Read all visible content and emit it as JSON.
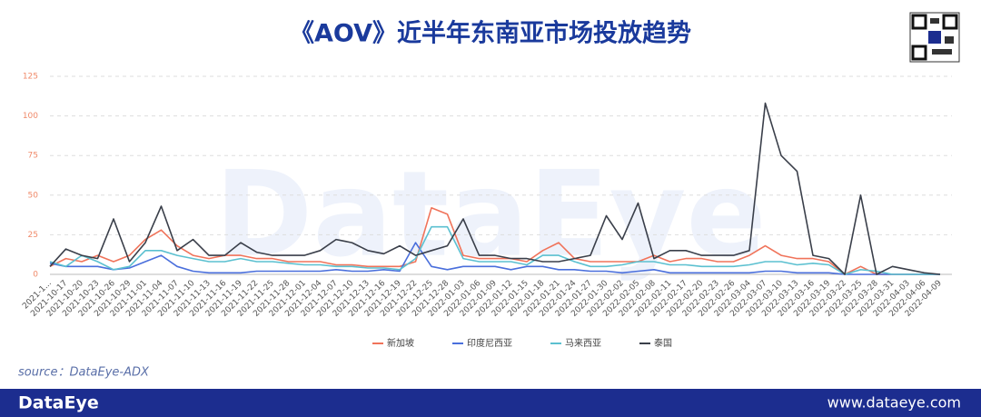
{
  "chart_data": {
    "type": "line",
    "title": "《AOV》近半年东南亚市场投放趋势",
    "watermark": "DataEye",
    "categories": [
      "2021-1...",
      "2021-10-17",
      "2021-10-20",
      "2021-10-23",
      "2021-10-26",
      "2021-10-29",
      "2021-11-01",
      "2021-11-04",
      "2021-11-07",
      "2021-11-10",
      "2021-11-13",
      "2021-11-16",
      "2021-11-19",
      "2021-11-22",
      "2021-11-25",
      "2021-11-28",
      "2021-12-01",
      "2021-12-04",
      "2021-12-07",
      "2021-12-10",
      "2021-12-13",
      "2021-12-16",
      "2021-12-19",
      "2021-12-22",
      "2021-12-25",
      "2021-12-28",
      "2022-01-03",
      "2022-01-06",
      "2022-01-09",
      "2022-01-12",
      "2022-01-15",
      "2022-01-18",
      "2022-01-21",
      "2022-01-24",
      "2022-01-27",
      "2022-01-30",
      "2022-02-02",
      "2022-02-05",
      "2022-02-08",
      "2022-02-11",
      "2022-02-17",
      "2022-02-20",
      "2022-02-23",
      "2022-02-26",
      "2022-03-04",
      "2022-03-07",
      "2022-03-10",
      "2022-03-13",
      "2022-03-16",
      "2022-03-19",
      "2022-03-22",
      "2022-03-25",
      "2022-03-28",
      "2022-03-31",
      "2022-04-03",
      "2022-04-06",
      "2022-04-09"
    ],
    "series": [
      {
        "name": "新加坡",
        "color": "#f0735a",
        "values": [
          5,
          10,
          8,
          12,
          8,
          12,
          22,
          28,
          18,
          12,
          10,
          12,
          12,
          10,
          10,
          8,
          8,
          8,
          6,
          6,
          5,
          5,
          5,
          8,
          42,
          38,
          12,
          10,
          10,
          10,
          8,
          15,
          20,
          10,
          8,
          8,
          8,
          8,
          12,
          8,
          10,
          10,
          8,
          8,
          12,
          18,
          12,
          10,
          10,
          8,
          0,
          5,
          0,
          0,
          0,
          0,
          0
        ]
      },
      {
        "name": "印度尼西亚",
        "color": "#4a6fdc",
        "values": [
          7,
          5,
          5,
          5,
          3,
          4,
          8,
          12,
          5,
          2,
          1,
          1,
          1,
          2,
          2,
          2,
          2,
          2,
          3,
          2,
          2,
          3,
          2,
          20,
          5,
          3,
          5,
          5,
          5,
          3,
          5,
          5,
          3,
          3,
          2,
          2,
          1,
          2,
          3,
          1,
          1,
          1,
          1,
          1,
          1,
          2,
          2,
          1,
          1,
          1,
          0,
          0,
          0,
          0,
          0,
          0,
          0
        ]
      },
      {
        "name": "马来西亚",
        "color": "#5bc0d0",
        "values": [
          8,
          5,
          12,
          8,
          3,
          5,
          15,
          15,
          12,
          10,
          8,
          8,
          10,
          8,
          8,
          7,
          6,
          6,
          5,
          5,
          4,
          4,
          3,
          10,
          30,
          30,
          10,
          8,
          8,
          8,
          6,
          12,
          12,
          8,
          5,
          5,
          6,
          8,
          8,
          6,
          6,
          5,
          5,
          5,
          6,
          8,
          8,
          6,
          7,
          6,
          0,
          3,
          2,
          0,
          0,
          0,
          0
        ]
      },
      {
        "name": "泰国",
        "color": "#3a3f4a",
        "values": [
          5,
          16,
          12,
          10,
          35,
          8,
          20,
          43,
          15,
          22,
          12,
          12,
          20,
          14,
          12,
          12,
          12,
          15,
          22,
          20,
          15,
          13,
          18,
          12,
          15,
          18,
          35,
          12,
          12,
          10,
          10,
          8,
          8,
          10,
          12,
          37,
          22,
          45,
          10,
          15,
          15,
          12,
          12,
          12,
          15,
          108,
          75,
          65,
          12,
          10,
          0,
          50,
          0,
          5,
          3,
          1,
          0
        ]
      }
    ],
    "ylim": [
      0,
      125
    ],
    "yticks": [
      0,
      25,
      50,
      75,
      100,
      125
    ],
    "grid": true
  },
  "source": "source：DataEye-ADX",
  "footer": {
    "brand": "DataEye",
    "url": "www.dataeye.com"
  }
}
